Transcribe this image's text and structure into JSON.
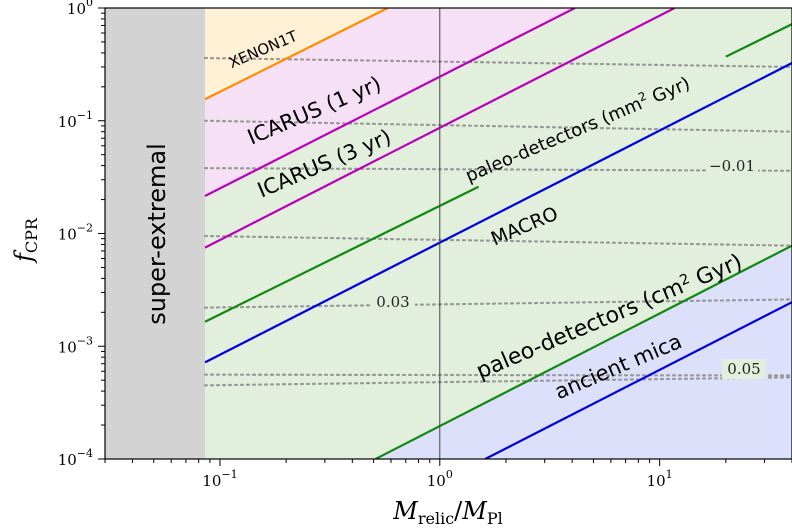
{
  "chart_data": {
    "type": "line",
    "xscale": "log",
    "yscale": "log",
    "xlim": [
      0.03,
      40
    ],
    "ylim": [
      0.0001,
      1
    ],
    "xlabel": "M_relic/M_Pl",
    "ylabel": "f_CPR",
    "x_ticks": [
      {
        "value": 0.1,
        "mantissa": "10",
        "exp": "−1"
      },
      {
        "value": 1,
        "mantissa": "10",
        "exp": "0"
      },
      {
        "value": 10,
        "mantissa": "10",
        "exp": "1"
      }
    ],
    "y_ticks": [
      {
        "value": 1,
        "mantissa": "10",
        "exp": "0"
      },
      {
        "value": 0.1,
        "mantissa": "10",
        "exp": "−1"
      },
      {
        "value": 0.01,
        "mantissa": "10",
        "exp": "−2"
      },
      {
        "value": 0.001,
        "mantissa": "10",
        "exp": "−3"
      },
      {
        "value": 0.0001,
        "mantissa": "10",
        "exp": "−4"
      }
    ],
    "reference_line_x": 1,
    "regions": [
      {
        "label": "super-extremal",
        "x_max": 0.0855,
        "color": "#d3d3d3"
      },
      {
        "label": "XENON1T",
        "color": "#fff0d6"
      },
      {
        "label": "ICARUS",
        "color": "#f6e0f5"
      },
      {
        "label": "paleo-detectors",
        "color": "#e2efdd"
      },
      {
        "label": "ancient mica",
        "color": "#dde0fb"
      }
    ],
    "series": [
      {
        "name": "XENON1T",
        "color": "#ff8c00",
        "points": [
          [
            0.0855,
            0.155
          ],
          [
            0.58,
            1.0
          ]
        ]
      },
      {
        "name": "ICARUS (1 yr)",
        "color": "#bb00bb",
        "points": [
          [
            0.0855,
            0.0215
          ],
          [
            4.12,
            1.0
          ]
        ]
      },
      {
        "name": "ICARUS (3 yr)",
        "color": "#bb00bb",
        "points": [
          [
            0.0855,
            0.0075
          ],
          [
            11.7,
            1.0
          ]
        ]
      },
      {
        "name": "paleo-detectors (mm² Gyr)",
        "color": "#118811",
        "points": [
          [
            0.0855,
            0.00165
          ],
          [
            1.5,
            0.026
          ]
        ],
        "continued": [
          [
            20,
            0.37
          ],
          [
            40,
            0.72
          ]
        ]
      },
      {
        "name": "MACRO",
        "color": "#0000dd",
        "points": [
          [
            0.0855,
            0.00072
          ],
          [
            40,
            0.325
          ]
        ]
      },
      {
        "name": "paleo-detectors (cm² Gyr)",
        "color": "#118811",
        "points": [
          [
            0.51,
            0.0001
          ],
          [
            40,
            0.0078
          ]
        ]
      },
      {
        "name": "ancient mica",
        "color": "#0000dd",
        "points": [
          [
            1.61,
            0.0001
          ],
          [
            40,
            0.00246
          ]
        ]
      }
    ],
    "contours": [
      {
        "y_left": 0.36,
        "y_right": 0.3
      },
      {
        "y_left": 0.1,
        "y_right": 0.08
      },
      {
        "y_left": 0.038,
        "y_right": 0.036,
        "label": "−0.01"
      },
      {
        "y_left": 0.0095,
        "y_right": 0.0078
      },
      {
        "y_left": 0.0022,
        "y_right": 0.0026,
        "label": "0.03"
      },
      {
        "y_left": 0.00045,
        "y_right": 0.00053
      },
      {
        "y_left": 0.00056,
        "y_right": 0.00055,
        "label": "0.05"
      }
    ],
    "annotations": [
      {
        "text": "super-extremal"
      },
      {
        "text": "XENON1T"
      },
      {
        "text": "ICARUS (1 yr)"
      },
      {
        "text": "ICARUS (3 yr)"
      },
      {
        "text": "paleo-detectors (mm",
        "sup": "2",
        "tail": " Gyr)"
      },
      {
        "text": "MACRO"
      },
      {
        "text": "paleo-detectors (cm",
        "sup": "2",
        "tail": " Gyr)"
      },
      {
        "text": "ancient mica"
      }
    ]
  }
}
